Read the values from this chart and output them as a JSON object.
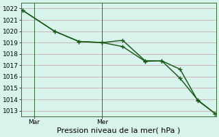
{
  "xlabel": "Pression niveau de la mer( hPa )",
  "bg_color": "#d8f2ec",
  "grid_color": "#c8aab4",
  "line_color": "#1a5c1a",
  "marker_color": "#1a5c1a",
  "ylim": [
    1012.5,
    1022.5
  ],
  "yticks": [
    1013,
    1014,
    1015,
    1016,
    1017,
    1018,
    1019,
    1020,
    1021,
    1022
  ],
  "x_day_labels": [
    [
      "Mar",
      0.065
    ],
    [
      "Mer",
      0.415
    ]
  ],
  "vline_x": [
    0.065,
    0.415
  ],
  "series1_x": [
    0.005,
    0.17,
    0.295,
    0.415,
    0.52,
    0.635,
    0.72,
    0.815,
    0.905,
    0.995
  ],
  "series1_y": [
    1021.85,
    1020.0,
    1019.1,
    1019.0,
    1018.65,
    1017.35,
    1017.4,
    1016.65,
    1013.9,
    1012.75
  ],
  "series2_x": [
    0.005,
    0.17,
    0.295,
    0.415,
    0.52,
    0.635,
    0.72,
    0.815,
    0.905,
    0.995
  ],
  "series2_y": [
    1021.85,
    1020.0,
    1019.1,
    1019.0,
    1019.2,
    1017.4,
    1017.4,
    1015.85,
    1013.95,
    1012.75
  ],
  "marker_size": 2.8,
  "linewidth": 1.1,
  "tick_fontsize": 6.5,
  "label_fontsize": 8.0,
  "spine_color": "#336633"
}
